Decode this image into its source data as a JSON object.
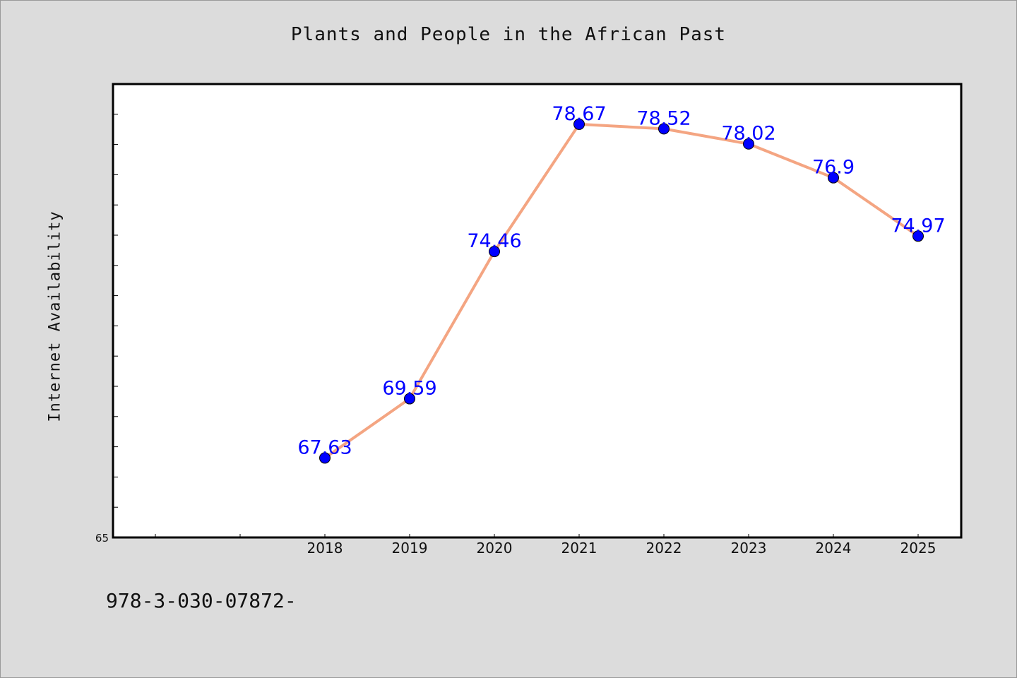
{
  "chart_data": {
    "type": "line",
    "title": "Plants and People in the African Past",
    "xlabel": "",
    "ylabel": "Internet Availability",
    "categories": [
      "2018",
      "2019",
      "2020",
      "2021",
      "2022",
      "2023",
      "2024",
      "2025"
    ],
    "x_ticks_extra_unlabeled": 2,
    "y_tick_labels": [
      "65"
    ],
    "ylim": [
      65,
      80
    ],
    "grid": false,
    "series": [
      {
        "values": [
          67.63,
          69.59,
          74.46,
          78.67,
          78.52,
          78.02,
          76.9,
          74.97
        ],
        "data_labels": [
          "67.63",
          "69.59",
          "74.46",
          "78.67",
          "78.52",
          "78.02",
          "76.9",
          "74.97"
        ]
      }
    ],
    "colors": {
      "line": "#f4a582",
      "marker": "#0000ff",
      "data_label": "#0000ff",
      "plot_background": "#ffffff",
      "page_background": "#dcdcdc"
    }
  },
  "footer": {
    "text": "978-3-030-07872-"
  }
}
